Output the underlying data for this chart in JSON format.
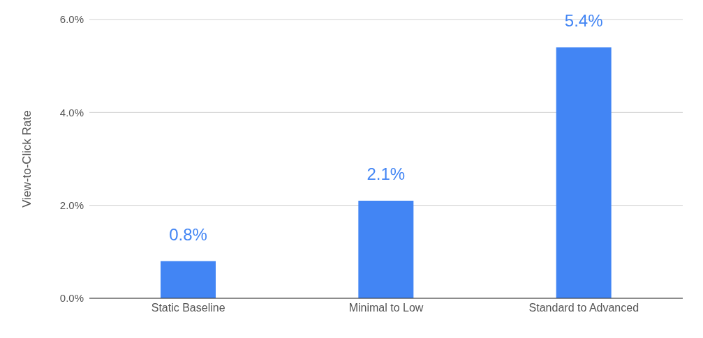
{
  "chart_data": {
    "type": "bar",
    "ylabel": "View-to-Click Rate",
    "categories": [
      "Static Baseline",
      "Minimal to Low",
      "Standard to Advanced"
    ],
    "values": [
      0.8,
      2.1,
      5.4
    ],
    "color": "#4285f4",
    "value_labels": [
      "0.8%",
      "2.1%",
      "5.4%"
    ],
    "ylim": [
      0,
      6
    ],
    "yticks": [
      {
        "value": 0,
        "label": "0.0%"
      },
      {
        "value": 2,
        "label": "2.0%"
      },
      {
        "value": 4,
        "label": "4.0%"
      },
      {
        "value": 6,
        "label": "6.0%"
      }
    ],
    "grid": "y"
  }
}
